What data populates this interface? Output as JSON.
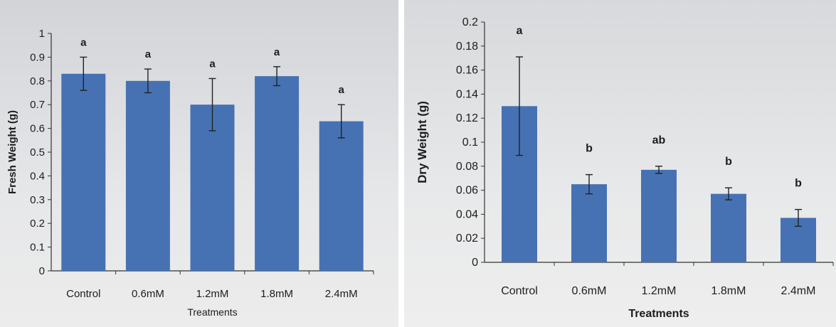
{
  "chart_data": [
    {
      "type": "bar",
      "title": "",
      "xlabel": "Treatments",
      "ylabel": "Fresh Weight (g)",
      "categories": [
        "Control",
        "0.6mM",
        "1.2mM",
        "1.8mM",
        "2.4mM"
      ],
      "values": [
        0.83,
        0.8,
        0.7,
        0.82,
        0.63
      ],
      "errors": [
        0.07,
        0.05,
        0.11,
        0.04,
        0.07
      ],
      "significance_labels": [
        "a",
        "a",
        "a",
        "a",
        "a"
      ],
      "ylim": [
        0,
        1
      ],
      "yticks": [
        "0",
        "0.1",
        "0.2",
        "0.3",
        "0.4",
        "0.5",
        "0.6",
        "0.7",
        "0.8",
        "0.9",
        "1"
      ],
      "grid": false,
      "bar_color": "#4672b4"
    },
    {
      "type": "bar",
      "title": "",
      "xlabel": "Treatments",
      "ylabel": "Dry Weight (g)",
      "categories": [
        "Control",
        "0.6mM",
        "1.2mM",
        "1.8mM",
        "2.4mM"
      ],
      "values": [
        0.13,
        0.065,
        0.077,
        0.057,
        0.037
      ],
      "errors": [
        0.041,
        0.008,
        0.003,
        0.005,
        0.007
      ],
      "significance_labels": [
        "a",
        "b",
        "ab",
        "b",
        "b"
      ],
      "ylim": [
        0,
        0.2
      ],
      "yticks": [
        "0",
        "0.02",
        "0.04",
        "0.06",
        "0.08",
        "0.1",
        "0.12",
        "0.14",
        "0.16",
        "0.18",
        "0.2"
      ],
      "grid": false,
      "bar_color": "#4672b4"
    }
  ]
}
